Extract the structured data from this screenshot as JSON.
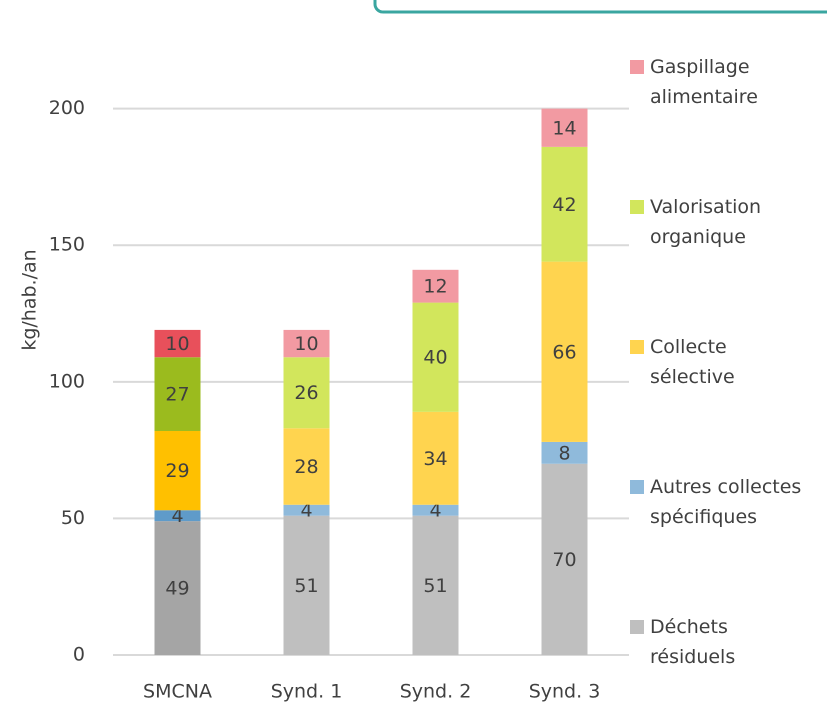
{
  "chart_data": {
    "type": "stacked_bar",
    "y_label": "kg/hab./an",
    "categories": [
      "SMCNA",
      "Synd. 1",
      "Synd. 2",
      "Synd. 3"
    ],
    "series": [
      {
        "name": "Déchets résiduels",
        "color": "#bfbfbf",
        "colors": [
          "#a5a5a5",
          "#bfbfbf",
          "#bfbfbf",
          "#bfbfbf"
        ],
        "values": [
          49,
          51,
          51,
          70
        ]
      },
      {
        "name": "Autres collectes spécifiques",
        "color": "#8fbadb",
        "colors": [
          "#5f9bc9",
          "#8fbadb",
          "#8fbadb",
          "#8fbadb"
        ],
        "values": [
          4,
          4,
          4,
          8
        ]
      },
      {
        "name": "Collecte sélective",
        "color": "#ffd44f",
        "colors": [
          "#ffc000",
          "#ffd44f",
          "#ffd44f",
          "#ffd44f"
        ],
        "values": [
          29,
          28,
          34,
          66
        ]
      },
      {
        "name": "Valorisation organique",
        "color": "#d2e65c",
        "colors": [
          "#9bbb1e",
          "#d2e65c",
          "#d2e65c",
          "#d2e65c"
        ],
        "values": [
          27,
          26,
          40,
          42
        ]
      },
      {
        "name": "Gaspillage alimentaire",
        "color": "#f29aa2",
        "colors": [
          "#e8505b",
          "#f29aa2",
          "#f29aa2",
          "#f29aa2"
        ],
        "values": [
          10,
          10,
          12,
          14
        ]
      }
    ],
    "ylim": [
      0,
      220
    ],
    "yticks": [
      0,
      50,
      100,
      150,
      200
    ],
    "grid": true,
    "legend": "right"
  }
}
